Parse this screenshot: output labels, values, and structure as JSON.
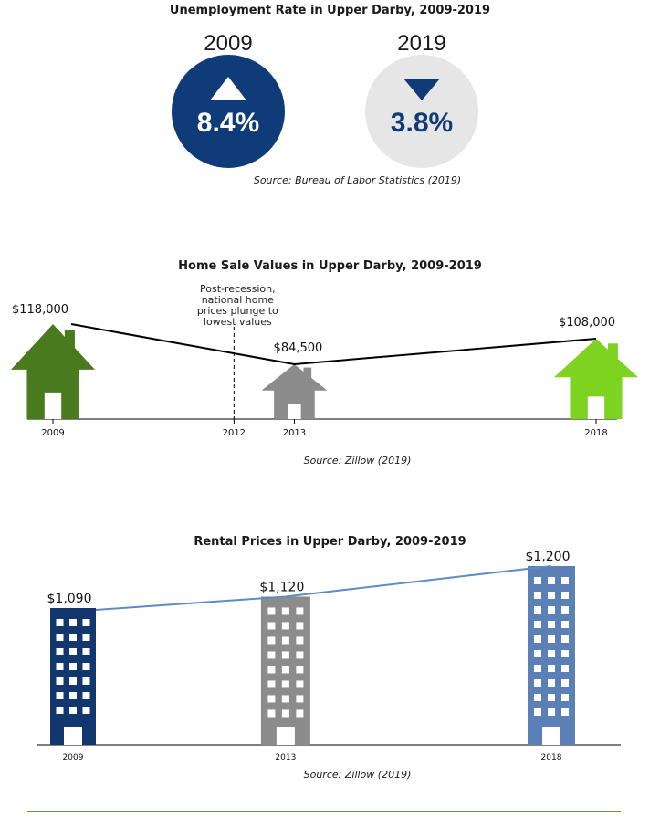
{
  "unemployment": {
    "title": "Unemployment Rate in Upper Darby, 2009-2019",
    "source": "Source: Bureau of Labor Statistics (2019)",
    "items": [
      {
        "year": "2009",
        "value": "8.4%",
        "direction": "up-triangle-icon",
        "color": "#0f3b78",
        "text_color": "#ffffff"
      },
      {
        "year": "2019",
        "value": "3.8%",
        "direction": "down-triangle-icon",
        "color": "#e6e6e6",
        "text_color": "#0f3b78"
      }
    ]
  },
  "chart_data": [
    {
      "type": "line",
      "title": "Home Sale Values in Upper Darby, 2009-2019",
      "source": "Source: Zillow (2019)",
      "x_ticks": [
        "2009",
        "2012",
        "2013",
        "2018"
      ],
      "points": [
        {
          "x": 2009,
          "y": 118000,
          "label": "$118,000",
          "color": "#4a7a1e"
        },
        {
          "x": 2013,
          "y": 84500,
          "label": "$84,500",
          "color": "#8c8c8c"
        },
        {
          "x": 2018,
          "y": 108000,
          "label": "$108,000",
          "color": "#7ed321"
        }
      ],
      "annotation": {
        "x": 2012,
        "text": [
          "Post-recession,",
          "national home",
          "prices plunge to",
          "lowest values"
        ]
      },
      "icon": "house-icon"
    },
    {
      "type": "line",
      "title": "Rental Prices in Upper Darby, 2009-2019",
      "source": "Source: Zillow (2019)",
      "x_ticks": [
        "2009",
        "2013",
        "2018"
      ],
      "points": [
        {
          "x": 2009,
          "y": 1090,
          "label": "$1,090",
          "color": "#12376e"
        },
        {
          "x": 2013,
          "y": 1120,
          "label": "$1,120",
          "color": "#8c8c8c"
        },
        {
          "x": 2018,
          "y": 1200,
          "label": "$1,200",
          "color": "#5b80b5"
        }
      ],
      "line_color": "#5b8cc4",
      "icon": "building-icon"
    }
  ]
}
